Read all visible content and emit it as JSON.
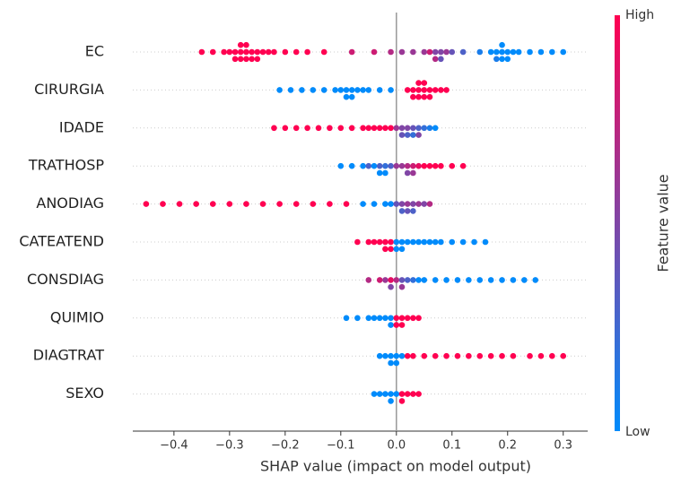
{
  "chart_data": {
    "type": "beeswarm",
    "xlabel": "SHAP value (impact on model output)",
    "colorbar_title": "Feature value",
    "colorbar_high": "High",
    "colorbar_low": "Low",
    "colormap": [
      "#008bfb",
      "#ff0051"
    ],
    "xlim": [
      -0.474,
      0.344
    ],
    "xticks": [
      {
        "value": -0.4,
        "label": "−0.4"
      },
      {
        "value": -0.3,
        "label": "−0.3"
      },
      {
        "value": -0.2,
        "label": "−0.2"
      },
      {
        "value": -0.1,
        "label": "−0.1"
      },
      {
        "value": 0,
        "label": "0.0"
      },
      0.1,
      0.2,
      0.3
    ],
    "rows": [
      {
        "name": "EC",
        "values": [
          -0.35,
          -0.33,
          -0.31,
          -0.3,
          -0.29,
          -0.29,
          -0.28,
          -0.28,
          -0.28,
          -0.27,
          -0.27,
          -0.27,
          -0.26,
          -0.26,
          -0.25,
          -0.25,
          -0.24,
          -0.23,
          -0.22,
          -0.2,
          -0.18,
          -0.16,
          -0.13,
          -0.08,
          -0.04,
          -0.01,
          0.01,
          0.03,
          0.05,
          0.06,
          0.07,
          0.07,
          0.08,
          0.08,
          0.09,
          0.1,
          0.12,
          0.15,
          0.17,
          0.18,
          0.18,
          0.19,
          0.19,
          0.19,
          0.2,
          0.2,
          0.21,
          0.22,
          0.24,
          0.26,
          0.28,
          0.3
        ],
        "feature_values": [
          1,
          1,
          1,
          1,
          1,
          1,
          1,
          1,
          1,
          1,
          1,
          1,
          1,
          1,
          1,
          1,
          1,
          1,
          1,
          1,
          1,
          1,
          1,
          0.8,
          0.8,
          0.7,
          0.6,
          0.6,
          0.6,
          0.8,
          0.5,
          0.7,
          0.5,
          0.4,
          0.6,
          0.4,
          0.3,
          0.1,
          0,
          0,
          0.1,
          0,
          0,
          0,
          0,
          0,
          0,
          0,
          0,
          0,
          0,
          0
        ]
      },
      {
        "name": "CIRURGIA",
        "values": [
          -0.21,
          -0.19,
          -0.17,
          -0.15,
          -0.13,
          -0.11,
          -0.1,
          -0.09,
          -0.09,
          -0.08,
          -0.08,
          -0.07,
          -0.06,
          -0.05,
          -0.03,
          -0.01,
          0.02,
          0.03,
          0.03,
          0.04,
          0.04,
          0.04,
          0.05,
          0.05,
          0.05,
          0.06,
          0.06,
          0.07,
          0.08,
          0.09
        ],
        "feature_values": [
          0,
          0,
          0,
          0,
          0,
          0,
          0,
          0,
          0,
          0,
          0,
          0,
          0,
          0,
          0,
          0,
          1,
          1,
          1,
          1,
          1,
          1,
          1,
          1,
          1,
          1,
          1,
          1,
          1,
          1
        ]
      },
      {
        "name": "IDADE",
        "values": [
          -0.22,
          -0.2,
          -0.18,
          -0.16,
          -0.14,
          -0.12,
          -0.1,
          -0.08,
          -0.06,
          -0.05,
          -0.04,
          -0.03,
          -0.02,
          -0.01,
          0,
          0.01,
          0.01,
          0.02,
          0.02,
          0.03,
          0.03,
          0.04,
          0.04,
          0.05,
          0.06,
          0.07
        ],
        "feature_values": [
          1,
          1,
          1,
          1,
          1,
          1,
          1,
          1,
          1,
          1,
          1,
          1,
          1,
          1,
          0.6,
          0.5,
          0.4,
          0.5,
          0.3,
          0.4,
          0.2,
          0.3,
          0.5,
          0.2,
          0.1,
          0
        ]
      },
      {
        "name": "TRATHOSP",
        "values": [
          -0.1,
          -0.08,
          -0.06,
          -0.05,
          -0.04,
          -0.03,
          -0.03,
          -0.02,
          -0.02,
          -0.01,
          0,
          0.01,
          0.02,
          0.02,
          0.03,
          0.03,
          0.04,
          0.05,
          0.06,
          0.07,
          0.08,
          0.1,
          0.12
        ],
        "feature_values": [
          0,
          0,
          0,
          0.3,
          0,
          0.3,
          0,
          0.2,
          0,
          0.3,
          0.6,
          0.6,
          0.7,
          0.5,
          0.8,
          0.6,
          0.9,
          1,
          1,
          1,
          1,
          1,
          1
        ]
      },
      {
        "name": "ANODIAG",
        "values": [
          -0.45,
          -0.42,
          -0.39,
          -0.36,
          -0.33,
          -0.3,
          -0.27,
          -0.24,
          -0.21,
          -0.18,
          -0.15,
          -0.12,
          -0.09,
          -0.06,
          -0.04,
          -0.02,
          -0.01,
          0,
          0.01,
          0.01,
          0.02,
          0.02,
          0.03,
          0.03,
          0.04,
          0.05,
          0.06
        ],
        "feature_values": [
          1,
          1,
          1,
          1,
          1,
          1,
          1,
          1,
          1,
          1,
          1,
          1,
          1,
          0,
          0,
          0,
          0,
          0.4,
          0.5,
          0.3,
          0.6,
          0.4,
          0.5,
          0.3,
          0.6,
          0.5,
          0.7
        ]
      },
      {
        "name": "CATEATEND",
        "values": [
          -0.07,
          -0.05,
          -0.04,
          -0.03,
          -0.02,
          -0.02,
          -0.01,
          -0.01,
          0,
          0,
          0.01,
          0.01,
          0.02,
          0.03,
          0.04,
          0.05,
          0.06,
          0.07,
          0.08,
          0.1,
          0.12,
          0.14,
          0.16
        ],
        "feature_values": [
          1,
          1,
          1,
          1,
          1,
          1,
          1,
          1,
          0,
          0,
          0,
          0,
          0,
          0,
          0,
          0,
          0,
          0,
          0,
          0,
          0,
          0,
          0
        ]
      },
      {
        "name": "CONSDIAG",
        "values": [
          -0.05,
          -0.03,
          -0.02,
          -0.01,
          -0.01,
          0,
          0.01,
          0.01,
          0.02,
          0.03,
          0.04,
          0.05,
          0.07,
          0.09,
          0.11,
          0.13,
          0.15,
          0.17,
          0.19,
          0.21,
          0.23,
          0.25
        ],
        "feature_values": [
          0.7,
          0.8,
          0.6,
          0.9,
          0.5,
          0.7,
          0.4,
          0.6,
          0.3,
          0.2,
          0,
          0,
          0,
          0,
          0,
          0,
          0,
          0,
          0,
          0,
          0,
          0
        ]
      },
      {
        "name": "QUIMIO",
        "values": [
          -0.09,
          -0.07,
          -0.05,
          -0.04,
          -0.03,
          -0.02,
          -0.01,
          -0.01,
          0,
          0,
          0.01,
          0.01,
          0.02,
          0.03,
          0.04
        ],
        "feature_values": [
          0,
          0,
          0,
          0,
          0,
          0,
          0,
          0,
          1,
          1,
          1,
          1,
          1,
          1,
          1
        ]
      },
      {
        "name": "DIAGTRAT",
        "values": [
          -0.03,
          -0.02,
          -0.01,
          -0.01,
          0,
          0,
          0.01,
          0.02,
          0.03,
          0.05,
          0.07,
          0.09,
          0.11,
          0.13,
          0.15,
          0.17,
          0.19,
          0.21,
          0.24,
          0.26,
          0.28,
          0.3
        ],
        "feature_values": [
          0,
          0,
          0,
          0,
          0,
          0,
          0,
          1,
          1,
          1,
          1,
          1,
          1,
          1,
          1,
          1,
          1,
          1,
          1,
          1,
          1,
          1
        ]
      },
      {
        "name": "SEXO",
        "values": [
          -0.04,
          -0.03,
          -0.02,
          -0.01,
          -0.01,
          0,
          0.01,
          0.01,
          0.02,
          0.03,
          0.04
        ],
        "feature_values": [
          0,
          0,
          0,
          0,
          0,
          0,
          1,
          1,
          1,
          1,
          1
        ]
      }
    ]
  }
}
